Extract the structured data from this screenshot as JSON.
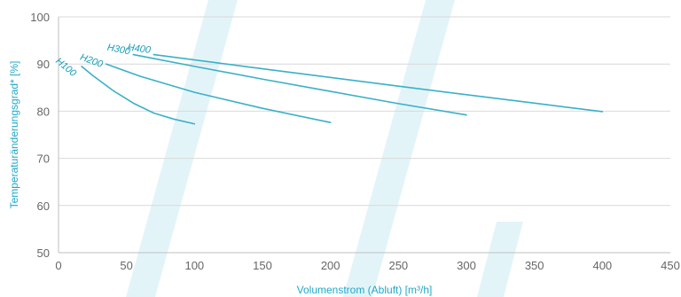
{
  "chart_data": {
    "type": "line",
    "xlabel": "Volumenstrom (Abluft) [m³/h]",
    "ylabel": "Temperaturänderungsgrad* [%]",
    "xlim": [
      0,
      450
    ],
    "ylim": [
      50,
      100
    ],
    "x_ticks": [
      0,
      50,
      100,
      150,
      200,
      250,
      300,
      350,
      400,
      450
    ],
    "y_ticks": [
      50,
      60,
      70,
      80,
      90,
      100
    ],
    "x_tick_labels": [
      "0",
      "50",
      "100",
      "150",
      "200",
      "250",
      "300",
      "350",
      "400",
      "450"
    ],
    "y_tick_labels": [
      "50",
      "60",
      "70",
      "80",
      "90",
      "100"
    ],
    "grid": true,
    "series": [
      {
        "name": "H100",
        "x": [
          17,
          25,
          40,
          55,
          70,
          85,
          100
        ],
        "y": [
          89.5,
          87.6,
          84.4,
          81.7,
          79.6,
          78.3,
          77.3
        ]
      },
      {
        "name": "H200",
        "x": [
          35,
          60,
          100,
          150,
          200
        ],
        "y": [
          90.0,
          87.4,
          84.0,
          80.6,
          77.6
        ]
      },
      {
        "name": "H300",
        "x": [
          55,
          100,
          150,
          200,
          250,
          300
        ],
        "y": [
          92.0,
          89.5,
          86.8,
          84.2,
          81.6,
          79.2
        ]
      },
      {
        "name": "H400",
        "x": [
          70,
          150,
          250,
          350,
          400
        ],
        "y": [
          92.0,
          89.0,
          85.3,
          81.7,
          79.9
        ]
      }
    ],
    "colors": {
      "line": "#3ab0c6",
      "label": "#1a9cb8",
      "axis_title": "#1fa8c9",
      "grid": "#d9d9d9",
      "axis": "#bfbfbf",
      "tick_text": "#666666",
      "watermark": "#e3f4f9"
    }
  }
}
